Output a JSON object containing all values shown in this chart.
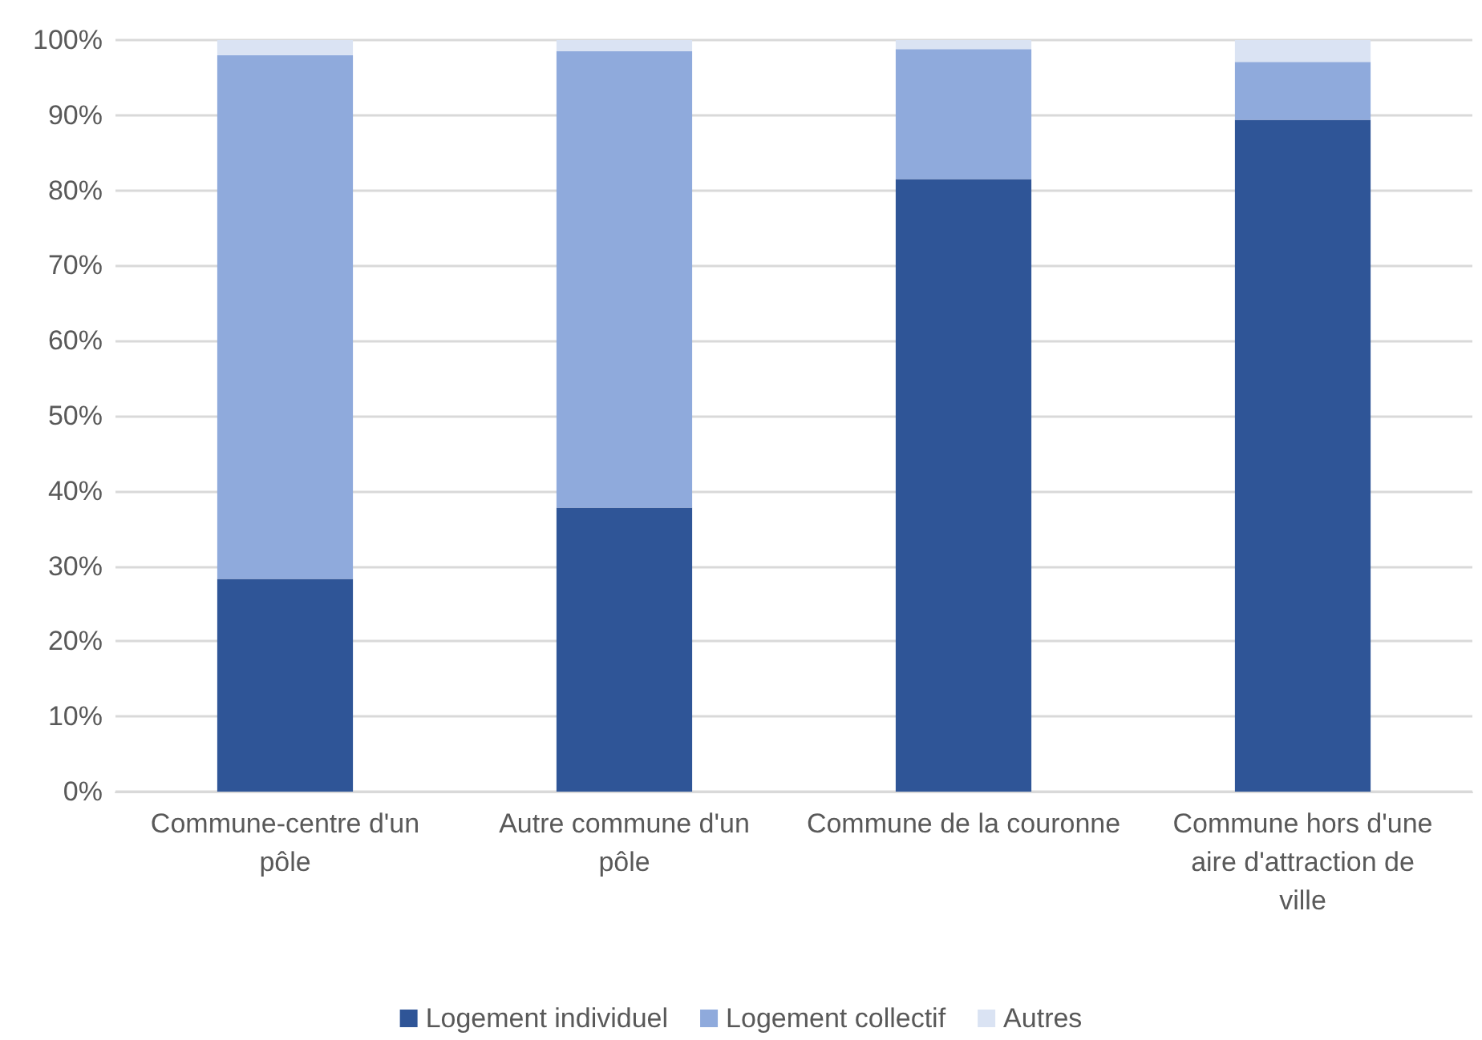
{
  "chart_data": {
    "type": "bar",
    "stacked": true,
    "categories": [
      "Commune-centre d'un pôle",
      "Autre commune d'un pôle",
      "Commune de la couronne",
      "Commune hors d'une aire d'attraction de ville"
    ],
    "series": [
      {
        "name": "Logement individuel",
        "color": "#2f5597",
        "values": [
          28.3,
          37.8,
          81.5,
          89.4
        ]
      },
      {
        "name": "Logement collectif",
        "color": "#8faadc",
        "values": [
          69.7,
          60.7,
          17.3,
          7.7
        ]
      },
      {
        "name": "Autres",
        "color": "#dae3f3",
        "values": [
          2.0,
          1.5,
          1.2,
          2.9
        ]
      }
    ],
    "ylim": [
      0,
      100
    ],
    "yticks": [
      {
        "value": 0,
        "label": "0%"
      },
      {
        "value": 10,
        "label": "10%"
      },
      {
        "value": 20,
        "label": "20%"
      },
      {
        "value": 30,
        "label": "30%"
      },
      {
        "value": 40,
        "label": "40%"
      },
      {
        "value": 50,
        "label": "50%"
      },
      {
        "value": 60,
        "label": "60%"
      },
      {
        "value": 70,
        "label": "70%"
      },
      {
        "value": 80,
        "label": "80%"
      },
      {
        "value": 90,
        "label": "90%"
      },
      {
        "value": 100,
        "label": "100%"
      }
    ],
    "grid": "y",
    "legend": "bottom"
  }
}
